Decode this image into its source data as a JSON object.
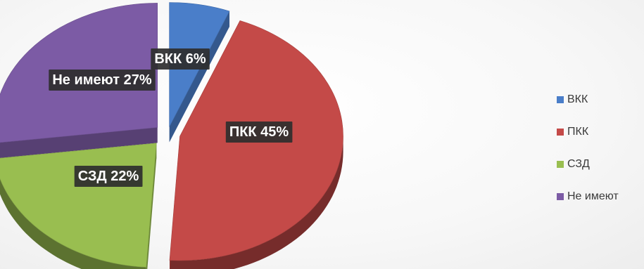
{
  "chart_data": {
    "type": "pie",
    "style": "3d-exploded",
    "legend_position": "right",
    "slices": [
      {
        "label": "ВКК",
        "value": 6,
        "data_label": "ВКК 6%",
        "color": "#4a7ec9"
      },
      {
        "label": "ПКК",
        "value": 45,
        "data_label": "ПКК 45%",
        "color": "#c44a48"
      },
      {
        "label": "СЗД",
        "value": 22,
        "data_label": "СЗД 22%",
        "color": "#99be50"
      },
      {
        "label": "Не имеют",
        "value": 27,
        "data_label": "Не имеют 27%",
        "color": "#7c5ba5"
      }
    ]
  }
}
